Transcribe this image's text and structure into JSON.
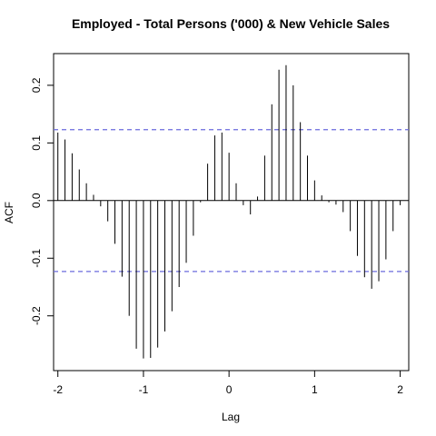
{
  "chart_data": {
    "type": "bar",
    "title": "Employed - Total Persons ('000) & New Vehicle Sales",
    "xlabel": "Lag",
    "ylabel": "ACF",
    "xlim": [
      -2.05,
      2.1
    ],
    "ylim": [
      -0.295,
      0.255
    ],
    "xticks": [
      -2,
      -1,
      0,
      1,
      2
    ],
    "xtick_labels": [
      "-2",
      "-1",
      "0",
      "1",
      "2"
    ],
    "yticks": [
      -0.2,
      -0.1,
      0.0,
      0.1,
      0.2
    ],
    "ytick_labels": [
      "-0.2",
      "-0.1",
      "0.0",
      "0.1",
      "0.2"
    ],
    "confidence_bound": 0.123,
    "confidence_color": "#6b6bde",
    "zero_line": true,
    "grid": false,
    "series": [
      {
        "x": [
          -2.0,
          -1.9167,
          -1.8333,
          -1.75,
          -1.6667,
          -1.5833,
          -1.5,
          -1.4167,
          -1.3333,
          -1.25,
          -1.1667,
          -1.0833,
          -1.0,
          -0.9167,
          -0.8333,
          -0.75,
          -0.6667,
          -0.5833,
          -0.5,
          -0.4167,
          -0.3333,
          -0.25,
          -0.1667,
          -0.0833,
          0.0,
          0.0833,
          0.1667,
          0.25,
          0.3333,
          0.4167,
          0.5,
          0.5833,
          0.6667,
          0.75,
          0.8333,
          0.9167,
          1.0,
          1.0833,
          1.1667,
          1.25,
          1.3333,
          1.4167,
          1.5,
          1.5833,
          1.6667,
          1.75,
          1.8333,
          1.9167,
          2.0
        ],
        "values": [
          0.118,
          0.106,
          0.082,
          0.054,
          0.03,
          0.01,
          -0.01,
          -0.036,
          -0.075,
          -0.132,
          -0.2,
          -0.257,
          -0.274,
          -0.273,
          -0.255,
          -0.227,
          -0.192,
          -0.15,
          -0.108,
          -0.061,
          -0.003,
          0.064,
          0.113,
          0.118,
          0.083,
          0.03,
          -0.008,
          -0.024,
          0.007,
          0.078,
          0.167,
          0.227,
          0.235,
          0.2,
          0.136,
          0.078,
          0.035,
          0.009,
          -0.003,
          -0.007,
          -0.02,
          -0.053,
          -0.096,
          -0.133,
          -0.153,
          -0.14,
          -0.102,
          -0.053,
          -0.008
        ]
      }
    ]
  }
}
